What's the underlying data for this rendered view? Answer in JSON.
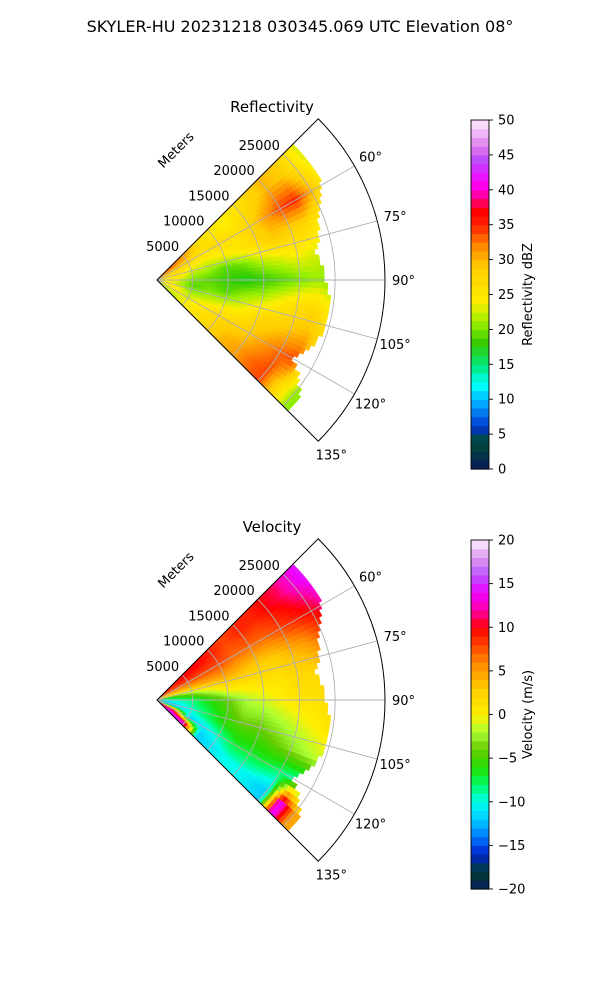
{
  "figure_title": "SKYLER-HU  20231218  030345.069 UTC Elevation 08°",
  "chart_data": [
    {
      "type": "heatmap",
      "subtype": "polar-sector-radar-ppi",
      "title": "Reflectivity",
      "radial_axis_label": "Meters",
      "radial_ticks": [
        5000,
        10000,
        15000,
        20000,
        25000
      ],
      "radial_tick_labels": [
        "5000",
        "10000",
        "15000",
        "20000",
        "25000"
      ],
      "azimuth_range_deg": [
        45,
        135
      ],
      "azimuth_ticks_deg": [
        60,
        75,
        90,
        105,
        120,
        135
      ],
      "azimuth_tick_labels": [
        "60°",
        "75°",
        "90°",
        "105°",
        "120°",
        "135°"
      ],
      "grid": true,
      "colorbar": {
        "label": "Reflectivity dBZ",
        "range": [
          0,
          50
        ],
        "ticks": [
          0,
          5,
          10,
          15,
          20,
          25,
          30,
          35,
          40,
          45,
          50
        ],
        "tick_labels": [
          "0",
          "5",
          "10",
          "15",
          "20",
          "25",
          "30",
          "35",
          "40",
          "45",
          "50"
        ],
        "stops": [
          [
            0,
            "#0b1a5c"
          ],
          [
            4,
            "#004d33"
          ],
          [
            6,
            "#0033cc"
          ],
          [
            9,
            "#0099ff"
          ],
          [
            12,
            "#00ffff"
          ],
          [
            15,
            "#00e676"
          ],
          [
            18,
            "#33cc00"
          ],
          [
            21,
            "#99ee00"
          ],
          [
            24,
            "#ffee00"
          ],
          [
            29,
            "#ffcc00"
          ],
          [
            32,
            "#ff8800"
          ],
          [
            35,
            "#ff2200"
          ],
          [
            37,
            "#ff0000"
          ],
          [
            39,
            "#ff0099"
          ],
          [
            41,
            "#ff00ff"
          ],
          [
            44,
            "#bb44ff"
          ],
          [
            46,
            "#dd77ee"
          ],
          [
            50,
            "#ffeeff"
          ]
        ]
      },
      "field": {
        "rings_m": [
          0,
          2500,
          5000,
          7500,
          10000,
          12500,
          15000,
          17500,
          20000,
          22500,
          25000,
          27500
        ],
        "azimuths_deg": [
          50,
          60,
          70,
          80,
          90,
          100,
          110,
          120,
          130
        ],
        "values": [
          [
            30,
            32,
            28,
            26,
            25,
            26,
            24,
            23,
            22
          ],
          [
            33,
            29,
            27,
            26,
            24,
            23,
            25,
            24,
            22
          ],
          [
            31,
            28,
            24,
            22,
            20,
            19,
            21,
            23,
            24
          ],
          [
            27,
            26,
            23,
            21,
            19,
            20,
            22,
            25,
            26
          ],
          [
            25,
            27,
            24,
            19,
            18,
            19,
            23,
            27,
            28
          ],
          [
            24,
            26,
            25,
            20,
            17,
            21,
            24,
            28,
            30
          ],
          [
            26,
            28,
            27,
            22,
            18,
            22,
            27,
            29,
            31
          ],
          [
            28,
            31,
            29,
            23,
            19,
            24,
            28,
            31,
            33
          ],
          [
            30,
            34,
            28,
            24,
            20,
            26,
            29,
            33,
            34
          ],
          [
            29,
            35,
            27,
            23,
            21,
            27,
            30,
            34,
            28
          ],
          [
            26,
            30,
            24,
            21,
            20,
            24,
            26,
            22,
            21
          ],
          [
            22,
            24,
            21,
            20,
            19,
            21,
            21,
            20,
            20
          ]
        ],
        "max_range_by_azimuth_m": [
          27000,
          26500,
          24000,
          22500,
          23500,
          24500,
          24000,
          22000,
          26000
        ]
      }
    },
    {
      "type": "heatmap",
      "subtype": "polar-sector-radar-ppi",
      "title": "Velocity",
      "radial_axis_label": "Meters",
      "radial_ticks": [
        5000,
        10000,
        15000,
        20000,
        25000
      ],
      "radial_tick_labels": [
        "5000",
        "10000",
        "15000",
        "20000",
        "25000"
      ],
      "azimuth_range_deg": [
        45,
        135
      ],
      "azimuth_ticks_deg": [
        60,
        75,
        90,
        105,
        120,
        135
      ],
      "azimuth_tick_labels": [
        "60°",
        "75°",
        "90°",
        "105°",
        "120°",
        "135°"
      ],
      "grid": true,
      "colorbar": {
        "label": "Velocity (m/s)",
        "range": [
          -20,
          20
        ],
        "ticks": [
          -20,
          -15,
          -10,
          -5,
          0,
          5,
          10,
          15,
          20
        ],
        "tick_labels": [
          "−20",
          "−15",
          "−10",
          "−5",
          "0",
          "5",
          "10",
          "15",
          "20"
        ],
        "stops": [
          [
            -20,
            "#0b1a5c"
          ],
          [
            -18,
            "#003d2e"
          ],
          [
            -16,
            "#0022cc"
          ],
          [
            -14,
            "#0077ff"
          ],
          [
            -12,
            "#00ccff"
          ],
          [
            -10,
            "#00ffee"
          ],
          [
            -8,
            "#00ff66"
          ],
          [
            -6,
            "#22dd00"
          ],
          [
            -4,
            "#66cc00"
          ],
          [
            -2,
            "#aaff33"
          ],
          [
            0,
            "#ffee00"
          ],
          [
            3,
            "#ffcc00"
          ],
          [
            6,
            "#ff8800"
          ],
          [
            8,
            "#ff4400"
          ],
          [
            10,
            "#ff0000"
          ],
          [
            12,
            "#ff00aa"
          ],
          [
            14,
            "#ee00ff"
          ],
          [
            16,
            "#bb55ff"
          ],
          [
            18,
            "#dd99ee"
          ],
          [
            20,
            "#ffeeff"
          ]
        ]
      },
      "field": {
        "rings_m": [
          0,
          2500,
          5000,
          7500,
          10000,
          12500,
          15000,
          17500,
          20000,
          22500,
          25000,
          27500
        ],
        "azimuths_deg": [
          50,
          60,
          70,
          80,
          90,
          100,
          110,
          120,
          130
        ],
        "values": [
          [
            8,
            6,
            2,
            -6,
            -10,
            -12,
            -14,
            -9,
            12
          ],
          [
            9,
            7,
            3,
            -5,
            -9,
            -11,
            -12,
            11,
            14
          ],
          [
            10,
            8,
            4,
            -3,
            -8,
            -9,
            -10,
            -12,
            13
          ],
          [
            10,
            8,
            5,
            -1,
            -6,
            -7,
            -8,
            -11,
            -12
          ],
          [
            9,
            8,
            5,
            1,
            -4,
            -5,
            -6,
            -9,
            -11
          ],
          [
            8,
            7,
            4,
            1,
            -2,
            -3,
            -5,
            -7,
            -10
          ],
          [
            9,
            7,
            3,
            1,
            -1,
            -3,
            -5,
            -7,
            -10
          ],
          [
            9,
            7,
            3,
            1,
            0,
            -2,
            -4,
            -7,
            -11
          ],
          [
            10,
            8,
            4,
            2,
            1,
            -1,
            -3,
            -8,
            -12
          ],
          [
            11,
            9,
            5,
            2,
            1,
            0,
            -2,
            -9,
            15
          ],
          [
            13,
            10,
            7,
            3,
            2,
            1,
            -1,
            -6,
            5
          ],
          [
            15,
            12,
            8,
            4,
            2,
            1,
            0,
            -5,
            4
          ]
        ],
        "max_range_by_azimuth_m": [
          27000,
          26500,
          24000,
          22500,
          23500,
          24500,
          24000,
          22000,
          26000
        ]
      }
    }
  ]
}
